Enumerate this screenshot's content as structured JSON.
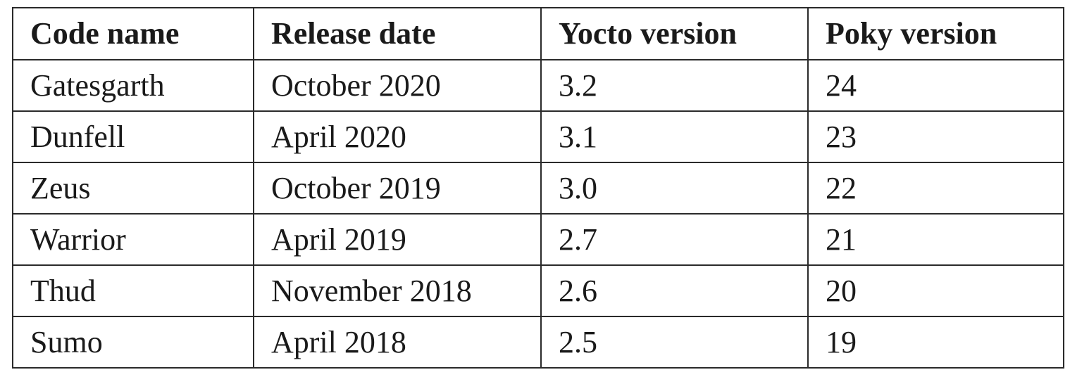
{
  "table": {
    "headers": [
      "Code name",
      "Release date",
      "Yocto version",
      "Poky version"
    ],
    "rows": [
      [
        "Gatesgarth",
        "October 2020",
        "3.2",
        "24"
      ],
      [
        "Dunfell",
        "April 2020",
        "3.1",
        "23"
      ],
      [
        "Zeus",
        "October 2019",
        "3.0",
        "22"
      ],
      [
        "Warrior",
        "April 2019",
        "2.7",
        "21"
      ],
      [
        "Thud",
        "November 2018",
        "2.6",
        "20"
      ],
      [
        "Sumo",
        "April 2018",
        "2.5",
        "19"
      ]
    ]
  }
}
